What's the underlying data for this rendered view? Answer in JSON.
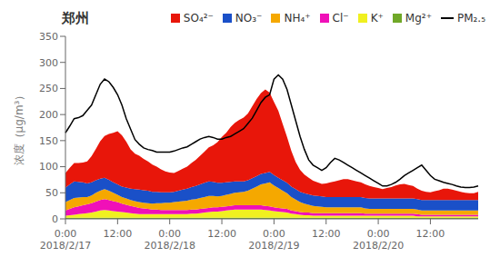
{
  "chart_data": {
    "type": "area",
    "stacked": true,
    "title": "郑州",
    "ylabel": "浓度（μg/m³）",
    "grid": false,
    "legend": "top",
    "categories": [
      "0:00\n2018/2/17",
      null,
      null,
      null,
      null,
      null,
      null,
      null,
      null,
      null,
      null,
      null,
      "12:00",
      null,
      null,
      null,
      null,
      null,
      null,
      null,
      null,
      null,
      null,
      null,
      "0:00\n2018/2/18",
      null,
      null,
      null,
      null,
      null,
      null,
      null,
      null,
      null,
      null,
      null,
      "12:00",
      null,
      null,
      null,
      null,
      null,
      null,
      null,
      null,
      null,
      null,
      null,
      "0:00\n2018/2/19",
      null,
      null,
      null,
      null,
      null,
      null,
      null,
      null,
      null,
      null,
      null,
      "12:00",
      null,
      null,
      null,
      null,
      null,
      null,
      null,
      null,
      null,
      null,
      null,
      "0:00\n2018/2/20",
      null,
      null,
      null,
      null,
      null,
      null,
      null,
      null,
      null,
      null,
      null,
      "12:00",
      null,
      null,
      null,
      null,
      null,
      null,
      null,
      null,
      null,
      null,
      null
    ],
    "ylim": [
      0,
      350
    ],
    "yticks": [
      0,
      50,
      100,
      150,
      200,
      250,
      300,
      350
    ],
    "series": [
      {
        "name": "SO₄²⁻",
        "color": "#e8160a",
        "type": "area",
        "values": [
          28,
          32,
          35,
          36,
          38,
          42,
          50,
          60,
          72,
          80,
          88,
          95,
          102,
          98,
          88,
          75,
          68,
          65,
          60,
          56,
          52,
          48,
          44,
          40,
          38,
          36,
          38,
          40,
          42,
          46,
          50,
          55,
          60,
          65,
          70,
          78,
          88,
          95,
          105,
          112,
          118,
          122,
          128,
          138,
          148,
          155,
          160,
          152,
          140,
          128,
          108,
          88,
          68,
          52,
          42,
          36,
          32,
          28,
          26,
          24,
          26,
          28,
          30,
          32,
          34,
          34,
          32,
          30,
          28,
          26,
          24,
          22,
          20,
          18,
          20,
          22,
          25,
          27,
          28,
          26,
          24,
          20,
          18,
          16,
          15,
          17,
          19,
          22,
          22,
          20,
          18,
          16,
          14,
          13,
          13,
          16
        ]
      },
      {
        "name": "NO₃⁻",
        "color": "#1a50c8",
        "type": "area",
        "values": [
          28,
          30,
          32,
          30,
          28,
          26,
          25,
          24,
          23,
          22,
          21,
          20,
          20,
          20,
          21,
          22,
          23,
          24,
          24,
          24,
          23,
          22,
          21,
          20,
          20,
          20,
          21,
          22,
          23,
          24,
          25,
          26,
          27,
          28,
          27,
          26,
          25,
          24,
          23,
          22,
          21,
          20,
          20,
          20,
          20,
          20,
          20,
          20,
          20,
          20,
          20,
          20,
          20,
          20,
          20,
          20,
          20,
          20,
          20,
          20,
          20,
          20,
          20,
          20,
          20,
          20,
          20,
          20,
          20,
          20,
          20,
          20,
          20,
          20,
          20,
          20,
          20,
          20,
          20,
          20,
          20,
          20,
          20,
          20,
          20,
          20,
          20,
          20,
          20,
          20,
          20,
          20,
          20,
          20,
          20,
          20
        ]
      },
      {
        "name": "NH₄⁺",
        "color": "#f5a800",
        "type": "area",
        "values": [
          16,
          17,
          18,
          17,
          16,
          14,
          15,
          17,
          18,
          19,
          18,
          16,
          14,
          13,
          12,
          11,
          11,
          11,
          11,
          11,
          11,
          12,
          13,
          14,
          14,
          15,
          16,
          17,
          18,
          19,
          20,
          21,
          22,
          23,
          22,
          21,
          21,
          22,
          23,
          24,
          25,
          26,
          28,
          32,
          36,
          40,
          43,
          46,
          42,
          38,
          34,
          30,
          26,
          22,
          19,
          17,
          15,
          14,
          13,
          12,
          11,
          11,
          11,
          11,
          11,
          11,
          11,
          11,
          11,
          10,
          9,
          9,
          9,
          9,
          9,
          9,
          9,
          9,
          9,
          9,
          9,
          9,
          8,
          8,
          8,
          8,
          8,
          8,
          8,
          8,
          8,
          8,
          8,
          8,
          8,
          8
        ]
      },
      {
        "name": "Cl⁻",
        "color": "#f010b8",
        "type": "area",
        "values": [
          10,
          12,
          14,
          15,
          16,
          17,
          18,
          19,
          20,
          21,
          20,
          19,
          18,
          16,
          15,
          14,
          13,
          12,
          11,
          10,
          9,
          9,
          8,
          8,
          8,
          8,
          8,
          8,
          8,
          8,
          8,
          8,
          8,
          8,
          8,
          8,
          8,
          8,
          8,
          8,
          8,
          8,
          8,
          8,
          8,
          8,
          8,
          8,
          7,
          7,
          7,
          7,
          6,
          6,
          5,
          5,
          5,
          5,
          5,
          5,
          5,
          5,
          5,
          5,
          5,
          5,
          5,
          5,
          5,
          4,
          4,
          4,
          4,
          4,
          4,
          4,
          4,
          4,
          4,
          4,
          4,
          4,
          3,
          3,
          3,
          3,
          3,
          3,
          3,
          3,
          3,
          3,
          3,
          3,
          3,
          3
        ]
      },
      {
        "name": "K⁺",
        "color": "#f0f020",
        "type": "area",
        "values": [
          4,
          5,
          6,
          7,
          8,
          9,
          10,
          12,
          14,
          15,
          14,
          13,
          12,
          11,
          10,
          9,
          8,
          7,
          7,
          7,
          7,
          7,
          7,
          7,
          7,
          7,
          7,
          7,
          7,
          8,
          8,
          9,
          10,
          11,
          12,
          12,
          13,
          14,
          15,
          16,
          16,
          16,
          16,
          16,
          16,
          16,
          15,
          14,
          13,
          12,
          11,
          10,
          8,
          7,
          6,
          5,
          5,
          4,
          4,
          4,
          4,
          4,
          4,
          4,
          4,
          4,
          4,
          4,
          4,
          4,
          4,
          4,
          4,
          4,
          4,
          4,
          4,
          4,
          4,
          4,
          4,
          3,
          3,
          3,
          3,
          3,
          3,
          3,
          3,
          3,
          3,
          3,
          3,
          3,
          3,
          3
        ]
      },
      {
        "name": "Mg²⁺",
        "color": "#70a828",
        "type": "area",
        "values": [
          2,
          2,
          2,
          2,
          2,
          2,
          2,
          2,
          2,
          2,
          2,
          2,
          2,
          2,
          2,
          2,
          2,
          2,
          2,
          2,
          2,
          2,
          2,
          2,
          2,
          2,
          2,
          2,
          2,
          2,
          2,
          2,
          2,
          2,
          2,
          2,
          2,
          2,
          2,
          2,
          2,
          2,
          2,
          2,
          2,
          2,
          2,
          2,
          2,
          2,
          2,
          2,
          2,
          2,
          2,
          2,
          2,
          2,
          2,
          2,
          2,
          2,
          2,
          2,
          2,
          2,
          2,
          2,
          2,
          2,
          2,
          2,
          2,
          2,
          2,
          2,
          2,
          2,
          2,
          2,
          2,
          2,
          2,
          2,
          2,
          2,
          2,
          2,
          2,
          2,
          2,
          2,
          2,
          2,
          2,
          2
        ]
      },
      {
        "name": "PM₂.₅",
        "color": "#000000",
        "type": "line",
        "values": [
          165,
          178,
          192,
          194,
          198,
          208,
          218,
          238,
          258,
          268,
          263,
          252,
          238,
          218,
          192,
          172,
          152,
          143,
          136,
          133,
          131,
          128,
          128,
          128,
          128,
          130,
          133,
          136,
          138,
          143,
          148,
          153,
          156,
          158,
          156,
          153,
          153,
          156,
          158,
          163,
          168,
          173,
          183,
          193,
          208,
          223,
          233,
          238,
          268,
          276,
          268,
          248,
          218,
          188,
          158,
          133,
          113,
          103,
          98,
          93,
          98,
          108,
          116,
          113,
          108,
          103,
          98,
          93,
          88,
          83,
          78,
          73,
          68,
          63,
          63,
          66,
          70,
          76,
          83,
          88,
          93,
          98,
          103,
          93,
          83,
          76,
          73,
          70,
          68,
          66,
          63,
          61,
          60,
          60,
          61,
          63
        ]
      }
    ]
  }
}
